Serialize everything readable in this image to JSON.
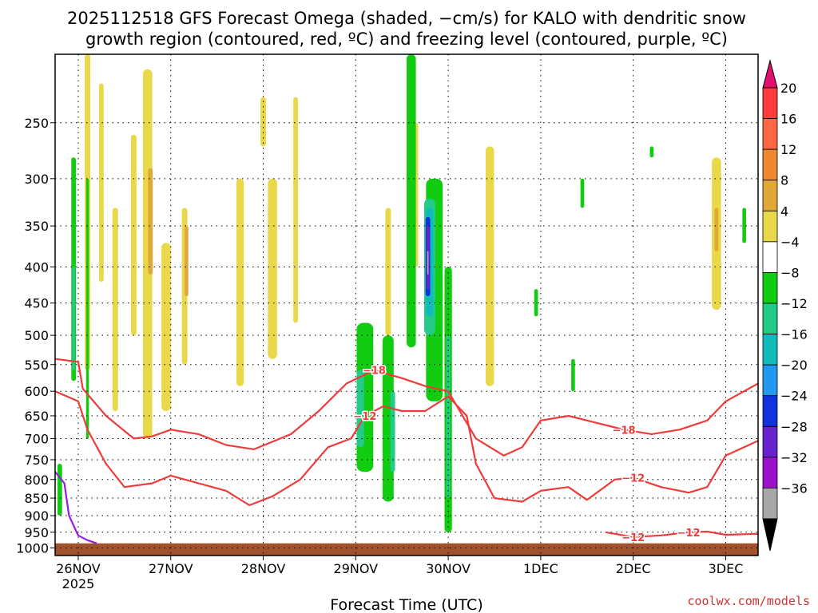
{
  "chart_data": {
    "type": "heatmap",
    "title_line1": "2025112518 GFS Forecast Omega (shaded, −cm/s) for KALO with dendritic snow",
    "title_line2": "growth region (contoured, red, ºC) and freezing level (contoured, purple, ºC)",
    "xlabel": "Forecast Time (UTC)",
    "credit": "coolwx.com/models",
    "x_range_days": [
      -0.25,
      7.35
    ],
    "x_ticks": [
      {
        "day": 0,
        "label": "26NOV",
        "sub": "2025"
      },
      {
        "day": 1,
        "label": "27NOV",
        "sub": ""
      },
      {
        "day": 2,
        "label": "28NOV",
        "sub": ""
      },
      {
        "day": 3,
        "label": "29NOV",
        "sub": ""
      },
      {
        "day": 4,
        "label": "30NOV",
        "sub": ""
      },
      {
        "day": 5,
        "label": "1DEC",
        "sub": ""
      },
      {
        "day": 6,
        "label": "2DEC",
        "sub": ""
      },
      {
        "day": 7,
        "label": "3DEC",
        "sub": ""
      }
    ],
    "y_range_hpa": [
      200,
      1025
    ],
    "y_ticks": [
      250,
      300,
      350,
      400,
      450,
      500,
      550,
      600,
      650,
      700,
      750,
      800,
      850,
      900,
      950,
      1000
    ],
    "colorbar": {
      "labels": [
        "20",
        "16",
        "12",
        "8",
        "4",
        "−4",
        "−8",
        "−12",
        "−16",
        "−20",
        "−24",
        "−28",
        "−32",
        "−36"
      ],
      "colors": [
        "#ff3b3b",
        "#ff6644",
        "#ee8833",
        "#e0a838",
        "#e8d84a",
        "#ffffff",
        "#11cc11",
        "#22cc88",
        "#11bbbb",
        "#2299ee",
        "#1133dd",
        "#6622cc",
        "#9911cc",
        "#a8a8a8"
      ],
      "top_arrow": "#e0106f",
      "bottom_arrow": "#000000"
    },
    "omega_shading": [
      {
        "cls": 4,
        "t": 0.1,
        "p0": 200,
        "p1": 560,
        "w": 0.06
      },
      {
        "cls": 4,
        "t": 0.25,
        "p0": 220,
        "p1": 420,
        "w": 0.05
      },
      {
        "cls": 4,
        "t": 0.4,
        "p0": 330,
        "p1": 640,
        "w": 0.06
      },
      {
        "cls": 4,
        "t": 0.6,
        "p0": 260,
        "p1": 500,
        "w": 0.06
      },
      {
        "cls": 4,
        "t": 0.75,
        "p0": 210,
        "p1": 700,
        "w": 0.1
      },
      {
        "cls": 8,
        "t": 0.78,
        "p0": 290,
        "p1": 410,
        "w": 0.05
      },
      {
        "cls": 4,
        "t": 0.95,
        "p0": 370,
        "p1": 640,
        "w": 0.1
      },
      {
        "cls": 4,
        "t": 1.15,
        "p0": 330,
        "p1": 550,
        "w": 0.06
      },
      {
        "cls": 8,
        "t": 1.17,
        "p0": 350,
        "p1": 440,
        "w": 0.04
      },
      {
        "cls": 4,
        "t": 1.75,
        "p0": 300,
        "p1": 590,
        "w": 0.08
      },
      {
        "cls": 4,
        "t": 2.0,
        "p0": 230,
        "p1": 270,
        "w": 0.06
      },
      {
        "cls": 4,
        "t": 2.1,
        "p0": 300,
        "p1": 540,
        "w": 0.1
      },
      {
        "cls": 4,
        "t": 2.35,
        "p0": 230,
        "p1": 480,
        "w": 0.05
      },
      {
        "cls": 4,
        "t": 3.35,
        "p0": 330,
        "p1": 500,
        "w": 0.06
      },
      {
        "cls": 4,
        "t": 3.65,
        "p0": 250,
        "p1": 400,
        "w": 0.05
      },
      {
        "cls": 4,
        "t": 3.9,
        "p0": 430,
        "p1": 600,
        "w": 0.08
      },
      {
        "cls": 4,
        "t": 4.45,
        "p0": 270,
        "p1": 590,
        "w": 0.09
      },
      {
        "cls": 4,
        "t": 6.9,
        "p0": 280,
        "p1": 460,
        "w": 0.1
      },
      {
        "cls": 8,
        "t": 6.9,
        "p0": 330,
        "p1": 380,
        "w": 0.04
      },
      {
        "cls": -4,
        "t": -0.05,
        "p0": 280,
        "p1": 580,
        "w": 0.05
      },
      {
        "cls": -8,
        "t": -0.05,
        "p0": 400,
        "p1": 560,
        "w": 0.03
      },
      {
        "cls": -4,
        "t": 0.1,
        "p0": 300,
        "p1": 700,
        "w": 0.03
      },
      {
        "cls": -4,
        "t": -0.2,
        "p0": 760,
        "p1": 900,
        "w": 0.05
      },
      {
        "cls": -4,
        "t": 3.1,
        "p0": 480,
        "p1": 780,
        "w": 0.18
      },
      {
        "cls": -8,
        "t": 3.05,
        "p0": 560,
        "p1": 720,
        "w": 0.08
      },
      {
        "cls": -4,
        "t": 3.35,
        "p0": 500,
        "p1": 860,
        "w": 0.12
      },
      {
        "cls": -8,
        "t": 3.4,
        "p0": 600,
        "p1": 780,
        "w": 0.05
      },
      {
        "cls": -4,
        "t": 3.6,
        "p0": 200,
        "p1": 520,
        "w": 0.1
      },
      {
        "cls": -4,
        "t": 3.85,
        "p0": 300,
        "p1": 620,
        "w": 0.18
      },
      {
        "cls": -8,
        "t": 3.8,
        "p0": 320,
        "p1": 500,
        "w": 0.12
      },
      {
        "cls": -12,
        "t": 3.8,
        "p0": 330,
        "p1": 470,
        "w": 0.08
      },
      {
        "cls": -20,
        "t": 3.78,
        "p0": 340,
        "p1": 440,
        "w": 0.05
      },
      {
        "cls": -24,
        "t": 3.78,
        "p0": 350,
        "p1": 430,
        "w": 0.035
      },
      {
        "cls": -32,
        "t": 3.78,
        "p0": 380,
        "p1": 410,
        "w": 0.015
      },
      {
        "cls": -4,
        "t": 4.0,
        "p0": 400,
        "p1": 950,
        "w": 0.08
      },
      {
        "cls": -8,
        "t": 4.0,
        "p0": 500,
        "p1": 850,
        "w": 0.04
      },
      {
        "cls": -4,
        "t": 5.45,
        "p0": 300,
        "p1": 330,
        "w": 0.04
      },
      {
        "cls": -4,
        "t": 4.95,
        "p0": 430,
        "p1": 470,
        "w": 0.04
      },
      {
        "cls": -4,
        "t": 5.35,
        "p0": 540,
        "p1": 600,
        "w": 0.04
      },
      {
        "cls": -4,
        "t": 6.2,
        "p0": 270,
        "p1": 280,
        "w": 0.04
      },
      {
        "cls": -4,
        "t": 7.2,
        "p0": 330,
        "p1": 370,
        "w": 0.04
      }
    ],
    "dgz_contours": [
      {
        "label": "−18",
        "points": [
          [
            -0.25,
            540
          ],
          [
            0.0,
            545
          ],
          [
            0.05,
            595
          ],
          [
            0.3,
            650
          ],
          [
            0.6,
            700
          ],
          [
            0.8,
            695
          ],
          [
            1.0,
            680
          ],
          [
            1.3,
            690
          ],
          [
            1.6,
            715
          ],
          [
            1.9,
            725
          ],
          [
            2.3,
            690
          ],
          [
            2.6,
            640
          ],
          [
            2.9,
            585
          ],
          [
            3.2,
            560
          ],
          [
            3.5,
            575
          ],
          [
            3.75,
            590
          ],
          [
            4.0,
            600
          ],
          [
            4.3,
            700
          ],
          [
            4.6,
            740
          ],
          [
            4.8,
            720
          ],
          [
            5.0,
            660
          ],
          [
            5.3,
            650
          ],
          [
            5.6,
            665
          ],
          [
            5.9,
            680
          ],
          [
            6.2,
            690
          ],
          [
            6.5,
            680
          ],
          [
            6.8,
            660
          ],
          [
            7.0,
            620
          ],
          [
            7.35,
            585
          ]
        ]
      },
      {
        "label": "−12",
        "points": [
          [
            -0.25,
            600
          ],
          [
            0.0,
            620
          ],
          [
            0.1,
            680
          ],
          [
            0.3,
            760
          ],
          [
            0.5,
            820
          ],
          [
            0.8,
            810
          ],
          [
            1.0,
            790
          ],
          [
            1.3,
            810
          ],
          [
            1.6,
            830
          ],
          [
            1.85,
            870
          ],
          [
            2.1,
            845
          ],
          [
            2.4,
            800
          ],
          [
            2.7,
            720
          ],
          [
            2.95,
            700
          ],
          [
            3.1,
            650
          ],
          [
            3.3,
            630
          ],
          [
            3.5,
            640
          ],
          [
            3.75,
            640
          ],
          [
            4.0,
            610
          ],
          [
            4.2,
            650
          ],
          [
            4.3,
            760
          ],
          [
            4.5,
            850
          ],
          [
            4.8,
            860
          ],
          [
            5.0,
            830
          ],
          [
            5.3,
            820
          ],
          [
            5.5,
            855
          ],
          [
            5.8,
            800
          ],
          [
            6.0,
            795
          ],
          [
            6.3,
            820
          ],
          [
            6.6,
            835
          ],
          [
            6.8,
            820
          ],
          [
            7.0,
            740
          ],
          [
            7.35,
            705
          ]
        ]
      },
      {
        "label": "−12",
        "points": [
          [
            5.7,
            950
          ],
          [
            6.0,
            965
          ],
          [
            6.3,
            960
          ],
          [
            6.6,
            950
          ],
          [
            6.8,
            948
          ],
          [
            7.0,
            958
          ],
          [
            7.35,
            955
          ]
        ]
      }
    ],
    "freezing_contour": {
      "label": "0",
      "points": [
        [
          -0.25,
          780
        ],
        [
          -0.15,
          810
        ],
        [
          -0.1,
          900
        ],
        [
          0.0,
          960
        ],
        [
          0.1,
          975
        ],
        [
          0.2,
          985
        ]
      ]
    },
    "terrain_top_hpa": 985,
    "terrain_color": "#a0522d"
  }
}
